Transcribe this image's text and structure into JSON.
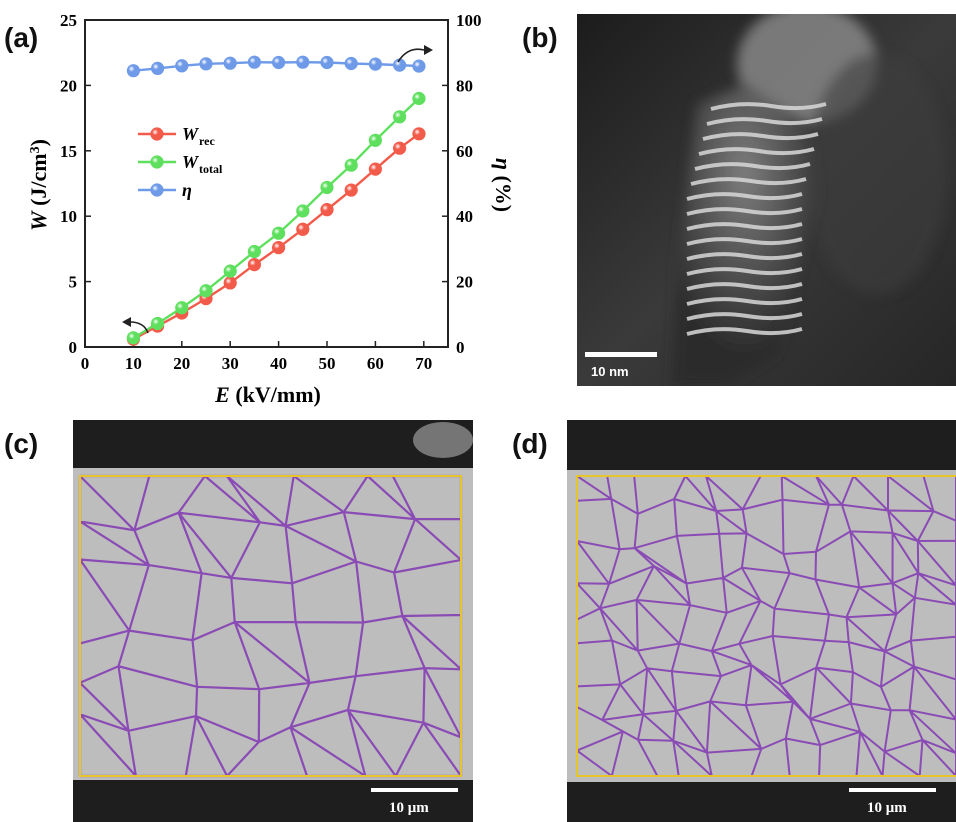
{
  "panels": {
    "a": "(a)",
    "b": "(b)",
    "c": "(c)",
    "d": "(d)"
  },
  "chart_data": {
    "type": "line",
    "xlabel": "E (kV/mm)",
    "ylabel_left": "W (J/cm3)",
    "ylabel_right": "η (%)",
    "xlim": [
      0,
      75
    ],
    "ylim_left": [
      0,
      25
    ],
    "ylim_right": [
      0,
      100
    ],
    "x_ticks": [
      0,
      10,
      20,
      30,
      40,
      50,
      60,
      70
    ],
    "y_left_ticks": [
      0,
      5,
      10,
      15,
      20,
      25
    ],
    "y_right_ticks": [
      0,
      20,
      40,
      60,
      80,
      100
    ],
    "x": [
      10,
      15,
      20,
      25,
      30,
      35,
      40,
      45,
      50,
      55,
      60,
      65,
      69
    ],
    "series": [
      {
        "name": "Wrec",
        "axis": "left",
        "color": "#f25a4a",
        "values": [
          0.6,
          1.6,
          2.6,
          3.7,
          4.9,
          6.3,
          7.6,
          9.0,
          10.5,
          12.0,
          13.6,
          15.2,
          16.3
        ]
      },
      {
        "name": "Wtotal",
        "axis": "left",
        "color": "#5ee05e",
        "values": [
          0.7,
          1.8,
          3.0,
          4.3,
          5.8,
          7.3,
          8.7,
          10.4,
          12.2,
          13.9,
          15.8,
          17.6,
          19.0
        ]
      },
      {
        "name": "η",
        "axis": "right",
        "color": "#6e9ae8",
        "values": [
          84.5,
          85.2,
          86.0,
          86.6,
          86.8,
          87.1,
          87.0,
          87.1,
          87.0,
          86.7,
          86.5,
          86.2,
          85.9
        ]
      }
    ],
    "legend": [
      {
        "main": "W",
        "sub": "rec",
        "color": "#f25a4a"
      },
      {
        "main": "W",
        "sub": "total",
        "color": "#5ee05e"
      },
      {
        "main": "η",
        "sub": "",
        "color": "#6e9ae8"
      }
    ],
    "legend_position": "upper-left"
  },
  "micrographs": {
    "b": {
      "scale_label": "10 nm"
    },
    "c": {
      "scale_label": "10 μm"
    },
    "d": {
      "scale_label": "10 μm"
    }
  },
  "colors": {
    "grain_boundary": "#8a4bb5",
    "frame": "#e6c52a",
    "sem_gray": "#bcbcbc"
  }
}
